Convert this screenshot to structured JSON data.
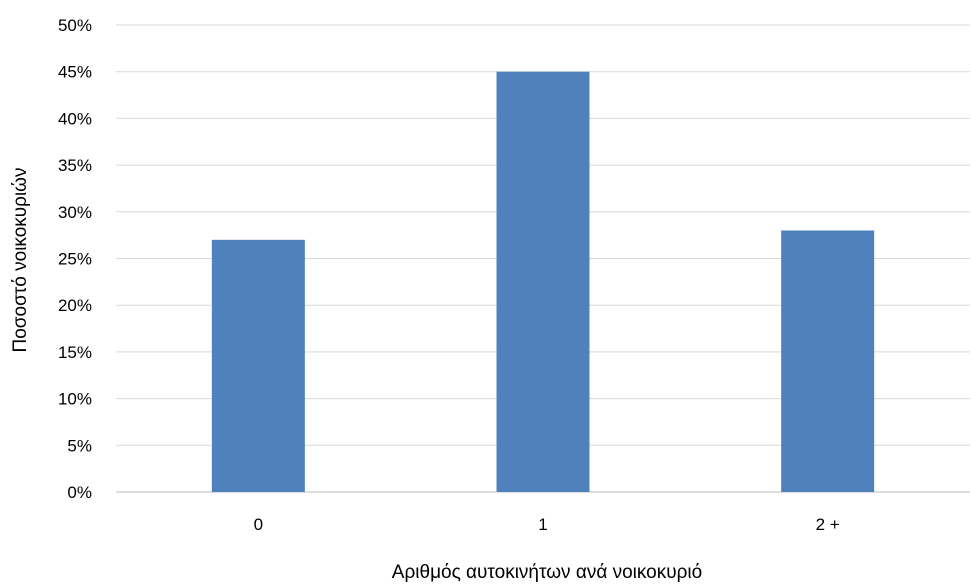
{
  "chart_data": {
    "type": "bar",
    "categories": [
      "0",
      "1",
      "2 +"
    ],
    "values": [
      27,
      45,
      28
    ],
    "xlabel": "Αριθμός αυτοκινήτων ανά νοικοκυριό",
    "ylabel": "Ποσοστό νοικοκυριών",
    "ylim": [
      0,
      50
    ],
    "ytick_step": 5,
    "ytick_suffix": "%",
    "grid": true,
    "legend": "none",
    "bar_color": "#4f81bd",
    "grid_color": "#d9d9d9"
  }
}
